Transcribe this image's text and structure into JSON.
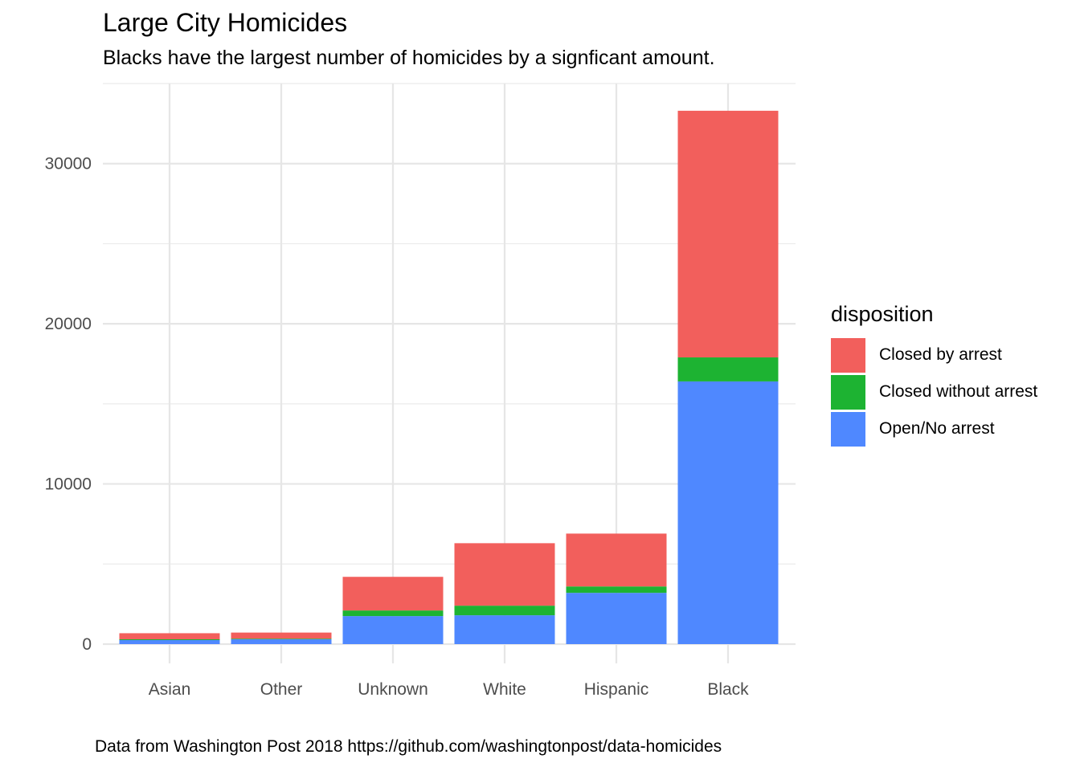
{
  "title": "Large City Homicides",
  "subtitle": "Blacks have the largest number of homicides by a signficant amount.",
  "caption": "Data from Washington Post 2018 https://github.com/washingtonpost/data-homicides",
  "legend": {
    "title": "disposition",
    "items": [
      {
        "label": "Closed by arrest",
        "color": "#F25F5C"
      },
      {
        "label": "Closed without arrest",
        "color": "#1DB332"
      },
      {
        "label": "Open/No arrest",
        "color": "#4F88FF"
      }
    ]
  },
  "chart_data": {
    "type": "bar",
    "stacked": true,
    "categories": [
      "Asian",
      "Other",
      "Unknown",
      "White",
      "Hispanic",
      "Black"
    ],
    "series": [
      {
        "name": "Open/No arrest",
        "color": "#4F88FF",
        "values": [
          250,
          300,
          1750,
          1800,
          3200,
          16400
        ]
      },
      {
        "name": "Closed without arrest",
        "color": "#1DB332",
        "values": [
          50,
          40,
          350,
          600,
          400,
          1500
        ]
      },
      {
        "name": "Closed by arrest",
        "color": "#F25F5C",
        "values": [
          380,
          380,
          2100,
          3900,
          3300,
          15400
        ]
      }
    ],
    "yticks": [
      0,
      10000,
      20000,
      30000
    ],
    "ylim": [
      0,
      35000
    ],
    "xlabel": "",
    "ylabel": "",
    "grid": true,
    "legend_position": "right"
  }
}
